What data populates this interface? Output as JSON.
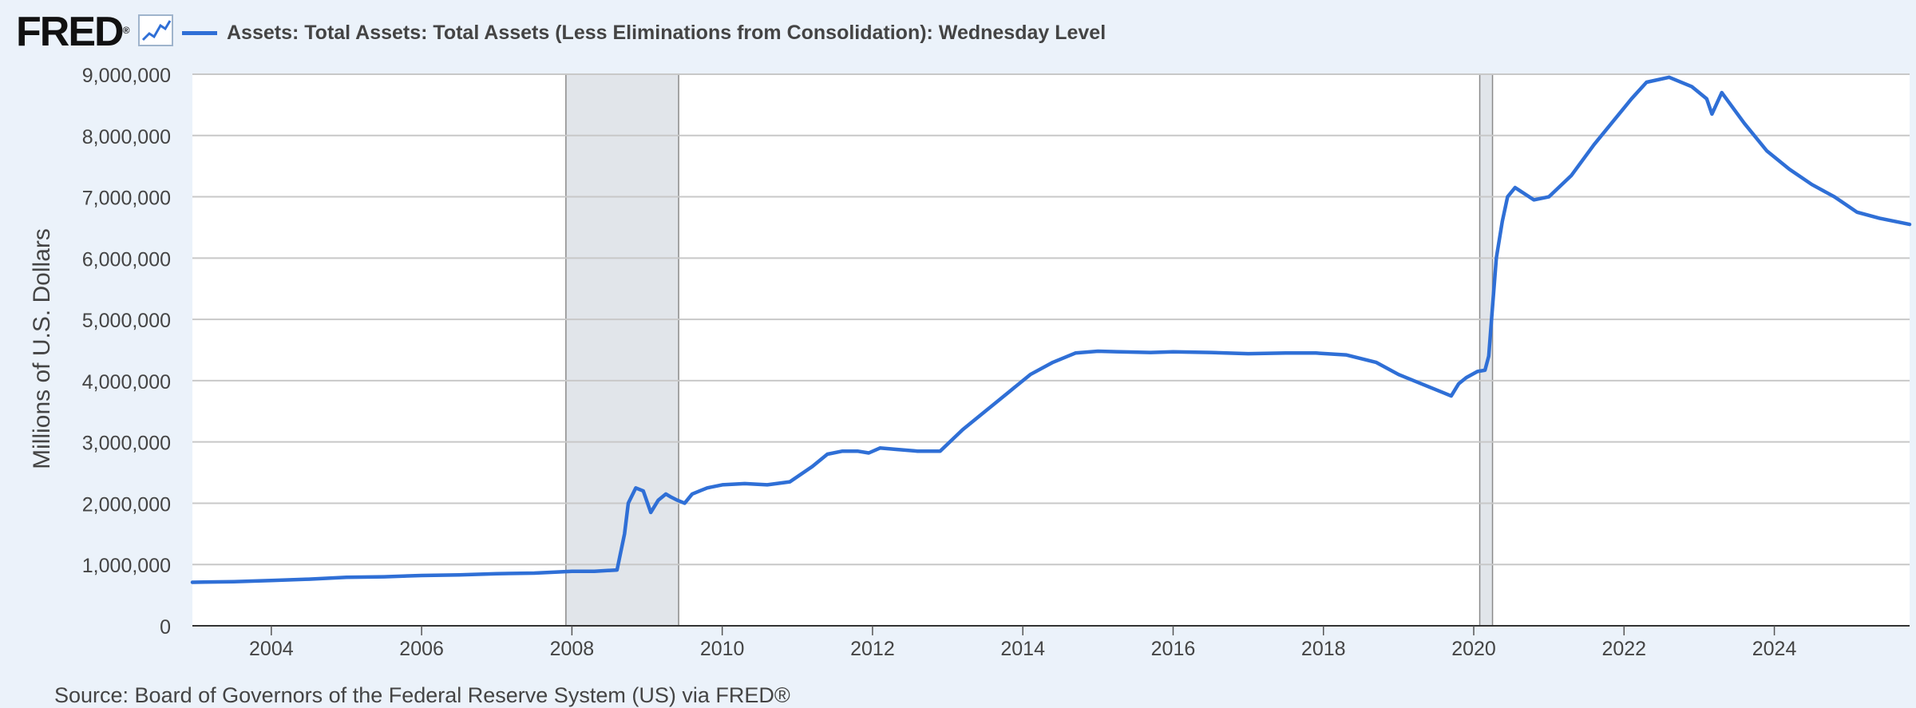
{
  "header": {
    "logo_text": "FRED",
    "logo_mark": "®",
    "logo_icon": "line-chart-icon",
    "legend_label": "Assets: Total Assets: Total Assets (Less Eliminations from Consolidation): Wednesday Level"
  },
  "source": "Source: Board of Governors of the Federal Reserve System (US) via FRED®",
  "colors": {
    "series": "#2f6fd6",
    "recession": "#e1e5ea",
    "plot_bg": "#ffffff",
    "page_bg": "#ebf2fa",
    "grid": "#c8c8c8"
  },
  "chart_data": {
    "type": "line",
    "title": "",
    "xlabel": "",
    "ylabel": "Millions of U.S. Dollars",
    "xlim": [
      2002.95,
      2025.8
    ],
    "ylim": [
      0,
      9000000
    ],
    "x_ticks": [
      2004,
      2006,
      2008,
      2010,
      2012,
      2014,
      2016,
      2018,
      2020,
      2022,
      2024
    ],
    "y_ticks": [
      0,
      1000000,
      2000000,
      3000000,
      4000000,
      5000000,
      6000000,
      7000000,
      8000000,
      9000000
    ],
    "y_tick_labels": [
      "0",
      "1,000,000",
      "2,000,000",
      "3,000,000",
      "4,000,000",
      "5,000,000",
      "6,000,000",
      "7,000,000",
      "8,000,000",
      "9,000,000"
    ],
    "grid": true,
    "legend": "top-left",
    "recessions": [
      [
        2007.92,
        2009.42
      ],
      [
        2020.08,
        2020.25
      ]
    ],
    "series": [
      {
        "name": "Assets: Total Assets: Total Assets (Less Eliminations from Consolidation): Wednesday Level",
        "x": [
          2002.95,
          2003.5,
          2004.0,
          2004.5,
          2005.0,
          2005.5,
          2006.0,
          2006.5,
          2007.0,
          2007.5,
          2008.0,
          2008.3,
          2008.6,
          2008.7,
          2008.75,
          2008.85,
          2008.95,
          2009.05,
          2009.15,
          2009.25,
          2009.32,
          2009.4,
          2009.5,
          2009.6,
          2009.7,
          2009.8,
          2010.0,
          2010.3,
          2010.6,
          2010.9,
          2011.2,
          2011.4,
          2011.6,
          2011.8,
          2011.95,
          2012.1,
          2012.3,
          2012.6,
          2012.9,
          2013.2,
          2013.5,
          2013.8,
          2014.1,
          2014.4,
          2014.7,
          2015.0,
          2015.3,
          2015.7,
          2016.0,
          2016.5,
          2017.0,
          2017.5,
          2017.9,
          2018.3,
          2018.7,
          2019.0,
          2019.3,
          2019.6,
          2019.7,
          2019.8,
          2019.9,
          2020.05,
          2020.15,
          2020.2,
          2020.25,
          2020.3,
          2020.38,
          2020.45,
          2020.55,
          2020.8,
          2021.0,
          2021.3,
          2021.6,
          2021.9,
          2022.1,
          2022.3,
          2022.6,
          2022.9,
          2023.1,
          2023.17,
          2023.3,
          2023.6,
          2023.9,
          2024.2,
          2024.5,
          2024.8,
          2025.1,
          2025.4,
          2025.8
        ],
        "values": [
          710000,
          720000,
          740000,
          760000,
          790000,
          800000,
          820000,
          830000,
          850000,
          860000,
          890000,
          890000,
          910000,
          1500000,
          2000000,
          2250000,
          2200000,
          1850000,
          2050000,
          2150000,
          2100000,
          2050000,
          2000000,
          2150000,
          2200000,
          2250000,
          2300000,
          2320000,
          2300000,
          2350000,
          2600000,
          2800000,
          2850000,
          2850000,
          2820000,
          2900000,
          2880000,
          2850000,
          2850000,
          3200000,
          3500000,
          3800000,
          4100000,
          4300000,
          4450000,
          4480000,
          4470000,
          4460000,
          4470000,
          4460000,
          4440000,
          4450000,
          4450000,
          4420000,
          4300000,
          4100000,
          3950000,
          3800000,
          3750000,
          3950000,
          4050000,
          4150000,
          4170000,
          4400000,
          5200000,
          6000000,
          6600000,
          7000000,
          7150000,
          6950000,
          7000000,
          7350000,
          7850000,
          8300000,
          8600000,
          8870000,
          8950000,
          8800000,
          8600000,
          8350000,
          8700000,
          8200000,
          7750000,
          7450000,
          7200000,
          7000000,
          6750000,
          6650000,
          6550000
        ]
      }
    ]
  }
}
